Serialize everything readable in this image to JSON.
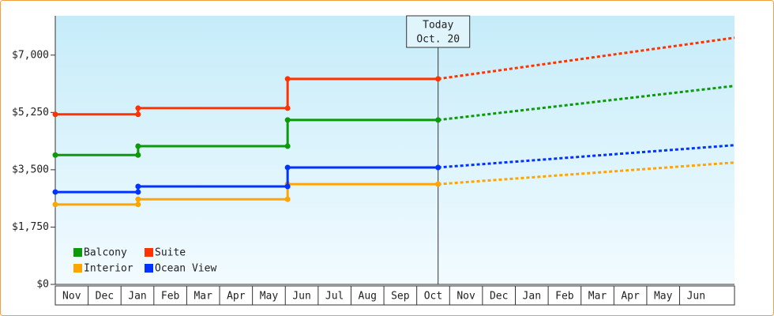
{
  "chart_data": {
    "type": "step-line",
    "ylim": [
      0,
      8200
    ],
    "yticks": [
      {
        "value": 0,
        "label": "$0"
      },
      {
        "value": 1750,
        "label": "$1,750"
      },
      {
        "value": 3500,
        "label": "$3,500"
      },
      {
        "value": 5250,
        "label": "$5,250"
      },
      {
        "value": 7000,
        "label": "$7,000"
      }
    ],
    "xlim": [
      0,
      20.67
    ],
    "xticks": [
      {
        "value": 0.5,
        "label": "Nov"
      },
      {
        "value": 1.5,
        "label": "Dec"
      },
      {
        "value": 2.5,
        "label": "Jan"
      },
      {
        "value": 3.5,
        "label": "Feb"
      },
      {
        "value": 4.5,
        "label": "Mar"
      },
      {
        "value": 5.5,
        "label": "Apr"
      },
      {
        "value": 6.5,
        "label": "May"
      },
      {
        "value": 7.5,
        "label": "Jun"
      },
      {
        "value": 8.5,
        "label": "Jul"
      },
      {
        "value": 9.5,
        "label": "Aug"
      },
      {
        "value": 10.5,
        "label": "Sep"
      },
      {
        "value": 11.5,
        "label": "Oct"
      },
      {
        "value": 12.5,
        "label": "Nov"
      },
      {
        "value": 13.5,
        "label": "Dec"
      },
      {
        "value": 14.5,
        "label": "Jan"
      },
      {
        "value": 15.5,
        "label": "Feb"
      },
      {
        "value": 16.5,
        "label": "Mar"
      },
      {
        "value": 17.5,
        "label": "Apr"
      },
      {
        "value": 18.5,
        "label": "May"
      },
      {
        "value": 19.5,
        "label": "Jun"
      }
    ],
    "x": [
      0,
      2.52,
      2.52,
      7.07,
      7.07,
      11.65
    ],
    "forecast_x": [
      11.65,
      20.67
    ],
    "series": [
      {
        "name": "Balcony",
        "color": "#0a9a0a",
        "values": [
          3950,
          3950,
          4220,
          4220,
          5020,
          5020
        ],
        "forecast": [
          5020,
          6060
        ]
      },
      {
        "name": "Suite",
        "color": "#ff3300",
        "values": [
          5190,
          5190,
          5380,
          5380,
          6275,
          6275
        ],
        "forecast": [
          6275,
          7530
        ]
      },
      {
        "name": "Interior",
        "color": "#ffa500",
        "values": [
          2440,
          2440,
          2600,
          2600,
          3060,
          3060
        ],
        "forecast": [
          3060,
          3720
        ]
      },
      {
        "name": "Ocean View",
        "color": "#0033ff",
        "values": [
          2820,
          2820,
          2990,
          2990,
          3570,
          3570
        ],
        "forecast": [
          3570,
          4250
        ]
      }
    ],
    "annotation": {
      "x": 11.65,
      "lines": [
        "Today",
        "Oct. 20"
      ]
    },
    "legend": "bottom-left"
  }
}
